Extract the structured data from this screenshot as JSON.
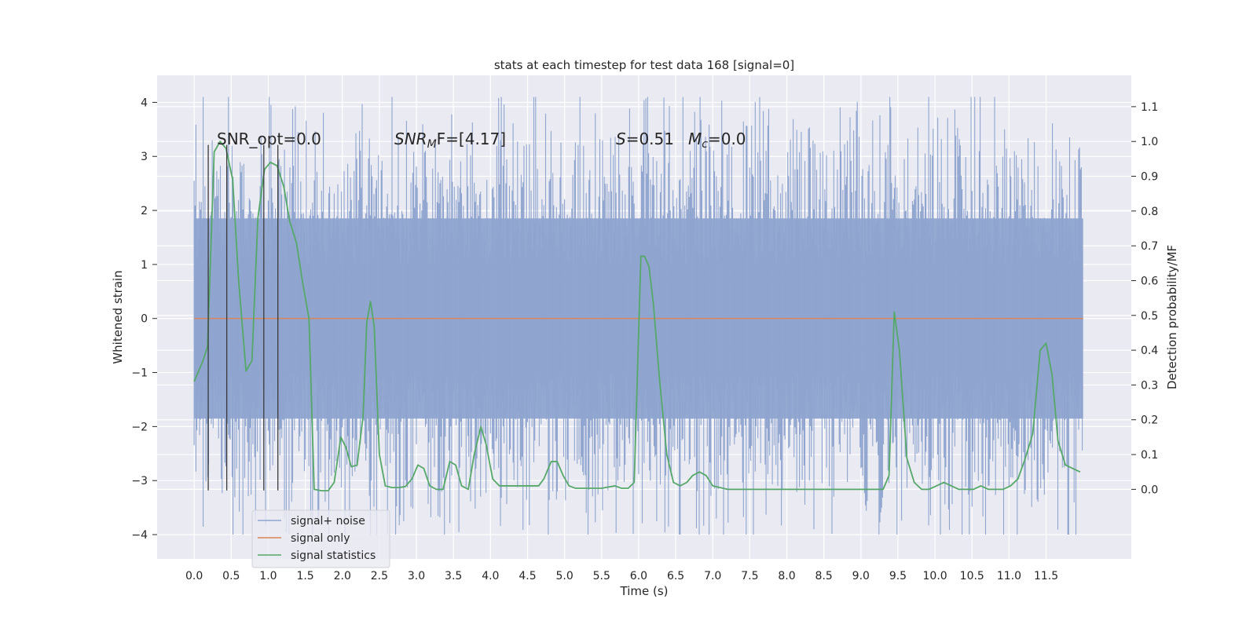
{
  "chart_data": {
    "type": "line",
    "title": "stats at each timestep for test data 168 [signal=0]",
    "xlabel": "Time (s)",
    "ylabel": "Whitened strain",
    "y2label": "Detection probability/MF",
    "xlim": [
      -0.5,
      12.65
    ],
    "ylim": [
      -4.45,
      4.5
    ],
    "y2lim": [
      -0.2,
      1.19
    ],
    "xticks": [
      0.0,
      0.5,
      1.0,
      1.5,
      2.0,
      2.5,
      3.0,
      3.5,
      4.0,
      4.5,
      5.0,
      5.5,
      6.0,
      6.5,
      7.0,
      7.5,
      8.0,
      8.5,
      9.0,
      9.5,
      10.0,
      10.5,
      11.0,
      11.5
    ],
    "xtick_labels": [
      "0.0",
      "0.5",
      "1.0",
      "1.5",
      "2.0",
      "2.5",
      "3.0",
      "3.5",
      "4.0",
      "4.5",
      "5.0",
      "5.5",
      "6.0",
      "6.5",
      "7.0",
      "7.5",
      "8.0",
      "8.5",
      "9.0",
      "9.5",
      "10.0",
      "10.5",
      "11.0",
      "11.5"
    ],
    "yticks": [
      -4,
      -3,
      -2,
      -1,
      0,
      1,
      2,
      3,
      4
    ],
    "ytick_labels": [
      "−4",
      "−3",
      "−2",
      "−1",
      "0",
      "1",
      "2",
      "3",
      "4"
    ],
    "y2ticks": [
      0.0,
      0.1,
      0.2,
      0.3,
      0.4,
      0.5,
      0.6,
      0.7,
      0.8,
      0.9,
      1.0,
      1.1
    ],
    "y2tick_labels": [
      "0.0",
      "0.1",
      "0.2",
      "0.3",
      "0.4",
      "0.5",
      "0.6",
      "0.7",
      "0.8",
      "0.9",
      "1.0",
      "1.1"
    ],
    "grid": true,
    "legend_position": "lower-left",
    "annotations": {
      "snr_opt": "SNR_opt=0.0",
      "snr_mf_sym": "SNR",
      "snr_mf_sub": "M",
      "snr_mf_rest": "F=[4.17]",
      "s_sym": "S",
      "s_rest": "=0.51",
      "mc_sym": "M",
      "mc_sub": "c",
      "mc_rest": "=0.0"
    },
    "vlines": [
      {
        "x": 0.19,
        "y_top": 0.99
      },
      {
        "x": 0.44,
        "y_top": 0.99
      },
      {
        "x": 0.94,
        "y_top": 0.99
      },
      {
        "x": 1.13,
        "y_top": 0.99
      }
    ],
    "series": [
      {
        "name": "signal+ noise",
        "color": "#8fa5cf",
        "axis": "left",
        "noise_envelope": {
          "t_start": 0.0,
          "t_end": 12.0,
          "core_sd": 0.95,
          "peak_max": 4.1,
          "peak_min": -4.0
        }
      },
      {
        "name": "signal only",
        "color": "#dd8452",
        "axis": "left",
        "x": [
          0.0,
          12.0
        ],
        "y": [
          0.0,
          0.0
        ]
      },
      {
        "name": "signal statistics",
        "color": "#55a868",
        "axis": "right",
        "x": [
          0.0,
          0.12,
          0.18,
          0.27,
          0.35,
          0.43,
          0.52,
          0.6,
          0.7,
          0.78,
          0.86,
          0.95,
          1.03,
          1.12,
          1.21,
          1.29,
          1.38,
          1.46,
          1.55,
          1.62,
          1.72,
          1.81,
          1.89,
          1.98,
          2.05,
          2.12,
          2.2,
          2.28,
          2.33,
          2.38,
          2.43,
          2.5,
          2.58,
          2.67,
          2.76,
          2.85,
          2.94,
          3.02,
          3.1,
          3.18,
          3.27,
          3.36,
          3.45,
          3.53,
          3.61,
          3.7,
          3.78,
          3.87,
          3.94,
          4.03,
          4.12,
          4.2,
          4.3,
          4.38,
          4.47,
          4.55,
          4.65,
          4.72,
          4.82,
          4.9,
          4.98,
          5.06,
          5.15,
          5.24,
          5.33,
          5.42,
          5.5,
          5.6,
          5.68,
          5.77,
          5.86,
          5.94,
          6.03,
          6.08,
          6.14,
          6.2,
          6.28,
          6.38,
          6.47,
          6.56,
          6.65,
          6.73,
          6.82,
          6.91,
          7.0,
          7.2,
          7.5,
          7.8,
          8.1,
          8.4,
          8.7,
          9.0,
          9.2,
          9.3,
          9.38,
          9.45,
          9.52,
          9.62,
          9.72,
          9.82,
          9.92,
          10.02,
          10.12,
          10.22,
          10.32,
          10.42,
          10.52,
          10.62,
          10.72,
          10.82,
          10.92,
          11.02,
          11.12,
          11.22,
          11.32,
          11.42,
          11.5,
          11.58,
          11.66,
          11.76,
          11.86,
          11.96
        ],
        "y": [
          0.31,
          0.37,
          0.41,
          0.97,
          1.0,
          0.98,
          0.89,
          0.6,
          0.34,
          0.37,
          0.78,
          0.92,
          0.94,
          0.93,
          0.87,
          0.77,
          0.71,
          0.6,
          0.49,
          0.0,
          -0.004,
          -0.004,
          0.02,
          0.15,
          0.12,
          0.065,
          0.07,
          0.21,
          0.48,
          0.54,
          0.47,
          0.1,
          0.01,
          0.005,
          0.005,
          0.008,
          0.03,
          0.07,
          0.06,
          0.01,
          0.0,
          0.0,
          0.08,
          0.07,
          0.01,
          0.0,
          0.1,
          0.18,
          0.13,
          0.03,
          0.01,
          0.01,
          0.01,
          0.01,
          0.01,
          0.01,
          0.01,
          0.03,
          0.08,
          0.08,
          0.04,
          0.01,
          0.003,
          0.003,
          0.003,
          0.003,
          0.003,
          0.007,
          0.01,
          0.003,
          0.003,
          0.02,
          0.67,
          0.67,
          0.64,
          0.53,
          0.32,
          0.1,
          0.02,
          0.01,
          0.02,
          0.04,
          0.05,
          0.04,
          0.01,
          0.0,
          0.0,
          0.0,
          0.0,
          0.0,
          0.0,
          0.0,
          0.0,
          0.0,
          0.04,
          0.51,
          0.4,
          0.09,
          0.02,
          0.0,
          0.0,
          0.01,
          0.02,
          0.01,
          0.0,
          0.0,
          0.0,
          0.01,
          0.0,
          0.0,
          0.0,
          0.01,
          0.03,
          0.09,
          0.16,
          0.4,
          0.42,
          0.33,
          0.14,
          0.07,
          0.06,
          0.05
        ]
      }
    ]
  }
}
